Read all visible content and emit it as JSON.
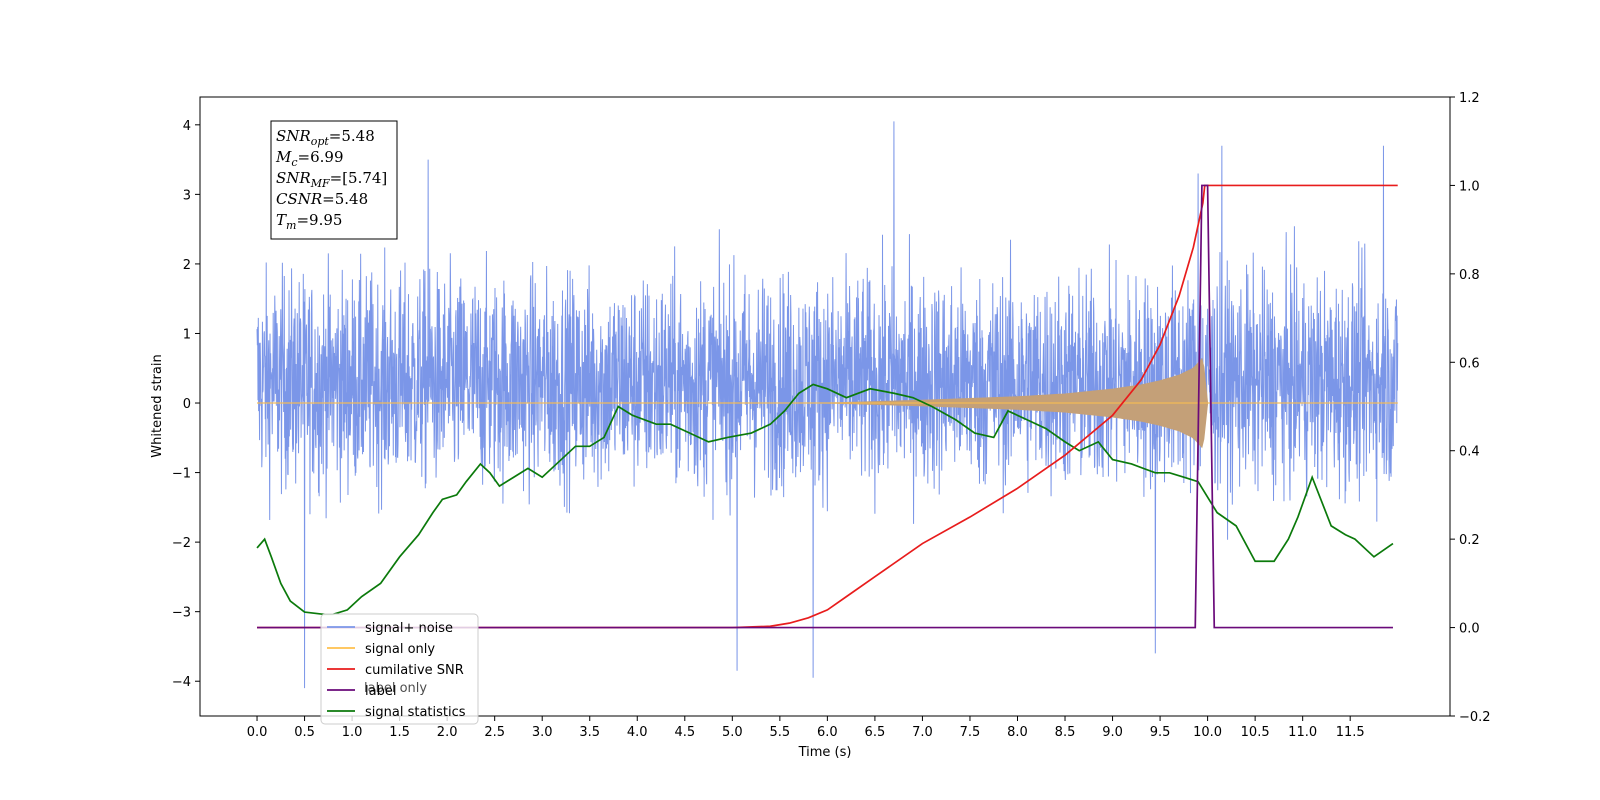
{
  "chart_data": {
    "type": "line",
    "title": "",
    "xlabel": "Time (s)",
    "ylabel": "Whitened strain",
    "xlim": [
      -0.6,
      12.55
    ],
    "ylim": [
      -4.5,
      4.4
    ],
    "y2lim": [
      -0.2,
      1.2
    ],
    "xticks": [
      "0.0",
      "0.5",
      "1.0",
      "1.5",
      "2.0",
      "2.5",
      "3.0",
      "3.5",
      "4.0",
      "4.5",
      "5.0",
      "5.5",
      "6.0",
      "6.5",
      "7.0",
      "7.5",
      "8.0",
      "8.5",
      "9.0",
      "9.5",
      "10.0",
      "10.5",
      "11.0",
      "11.5"
    ],
    "yticks": [
      "4",
      "3",
      "2",
      "1",
      "0",
      "−1",
      "−2",
      "−3",
      "−4"
    ],
    "y2ticks": [
      "1.2",
      "1.0",
      "0.8",
      "0.6",
      "0.4",
      "0.2",
      "0.0",
      "−0.2"
    ],
    "grid": false,
    "legend_position": "lower-left",
    "annotation": [
      {
        "base": "SNR",
        "sub": "opt",
        "value": "=5.48"
      },
      {
        "base": "M",
        "sub": "c",
        "value": "=6.99"
      },
      {
        "base": "SNR",
        "sub": "MF",
        "value": "=[5.74]"
      },
      {
        "base": "CSNR",
        "sub": "",
        "value": "=5.48"
      },
      {
        "base": "T",
        "sub": "m",
        "value": "=9.95"
      }
    ],
    "series": [
      {
        "name": "signal+ noise",
        "axis": "left",
        "color": "#7b96e8",
        "style": "dense noise centered at 0.3, band about -1.6 to 2.0, spikes to about ±4",
        "x_range": [
          0.0,
          12.0
        ],
        "center": 0.3,
        "band": [
          -1.6,
          2.0
        ],
        "extremes": [
          {
            "x": 0.5,
            "y": -4.1
          },
          {
            "x": 1.8,
            "y": 3.5
          },
          {
            "x": 5.05,
            "y": -3.85
          },
          {
            "x": 5.85,
            "y": -3.95
          },
          {
            "x": 6.7,
            "y": 4.05
          },
          {
            "x": 9.45,
            "y": -3.6
          },
          {
            "x": 9.9,
            "y": 3.3
          },
          {
            "x": 10.15,
            "y": 3.7
          },
          {
            "x": 11.85,
            "y": 3.7
          }
        ]
      },
      {
        "name": "signal only",
        "axis": "left",
        "color": "#ffc04d",
        "style": "chirp envelope",
        "x": [
          0.0,
          6.0,
          7.0,
          8.0,
          8.5,
          9.0,
          9.3,
          9.5,
          9.7,
          9.85,
          9.95,
          10.0,
          12.0
        ],
        "envelope": [
          0.0,
          0.0,
          0.04,
          0.09,
          0.13,
          0.2,
          0.26,
          0.32,
          0.4,
          0.5,
          0.65,
          0.0,
          0.0
        ]
      },
      {
        "name": "cumilative SNR",
        "axis": "right",
        "color": "#e81c1c",
        "x": [
          0.0,
          5.0,
          5.4,
          5.6,
          5.8,
          6.0,
          6.2,
          6.5,
          7.0,
          7.5,
          8.0,
          8.5,
          9.0,
          9.3,
          9.5,
          9.7,
          9.85,
          9.95,
          9.97,
          12.0
        ],
        "values": [
          0.0,
          0.0,
          0.003,
          0.01,
          0.022,
          0.04,
          0.07,
          0.115,
          0.19,
          0.25,
          0.315,
          0.39,
          0.48,
          0.56,
          0.64,
          0.75,
          0.86,
          0.96,
          1.0,
          1.0
        ]
      },
      {
        "name": "label",
        "axis": "right",
        "color": "#6a0a7a",
        "x": [
          0.0,
          9.87,
          9.94,
          10.0,
          10.07,
          11.95
        ],
        "values": [
          0.0,
          0.0,
          1.0,
          1.0,
          0.0,
          0.0
        ]
      },
      {
        "name": "signal statistics",
        "axis": "right",
        "color": "#0b7a0b",
        "x": [
          0.0,
          0.08,
          0.15,
          0.25,
          0.35,
          0.5,
          0.7,
          0.8,
          0.95,
          1.1,
          1.3,
          1.5,
          1.7,
          1.85,
          1.95,
          2.1,
          2.2,
          2.35,
          2.45,
          2.55,
          2.7,
          2.85,
          3.0,
          3.2,
          3.35,
          3.5,
          3.65,
          3.8,
          3.95,
          4.2,
          4.35,
          4.55,
          4.75,
          4.95,
          5.2,
          5.4,
          5.55,
          5.7,
          5.85,
          6.0,
          6.2,
          6.45,
          6.7,
          6.9,
          7.1,
          7.35,
          7.55,
          7.75,
          7.9,
          8.1,
          8.3,
          8.5,
          8.65,
          8.85,
          9.0,
          9.2,
          9.45,
          9.6,
          9.75,
          9.9,
          10.1,
          10.3,
          10.5,
          10.7,
          10.85,
          10.95,
          11.1,
          11.3,
          11.45,
          11.55,
          11.75,
          11.95
        ],
        "values": [
          0.18,
          0.2,
          0.16,
          0.1,
          0.06,
          0.035,
          0.03,
          0.03,
          0.04,
          0.07,
          0.1,
          0.16,
          0.21,
          0.26,
          0.29,
          0.3,
          0.33,
          0.37,
          0.35,
          0.32,
          0.34,
          0.36,
          0.34,
          0.38,
          0.41,
          0.41,
          0.43,
          0.5,
          0.48,
          0.46,
          0.46,
          0.44,
          0.42,
          0.43,
          0.44,
          0.46,
          0.49,
          0.53,
          0.55,
          0.54,
          0.52,
          0.54,
          0.53,
          0.52,
          0.5,
          0.47,
          0.44,
          0.43,
          0.49,
          0.47,
          0.45,
          0.42,
          0.4,
          0.42,
          0.38,
          0.37,
          0.35,
          0.35,
          0.34,
          0.33,
          0.26,
          0.23,
          0.15,
          0.15,
          0.2,
          0.25,
          0.34,
          0.23,
          0.21,
          0.2,
          0.16,
          0.19
        ]
      }
    ],
    "legend_entries": [
      "signal+ noise",
      "signal only",
      "cumilative SNR",
      "label",
      "signal statistics"
    ],
    "legend_overlap_text": "label only"
  }
}
